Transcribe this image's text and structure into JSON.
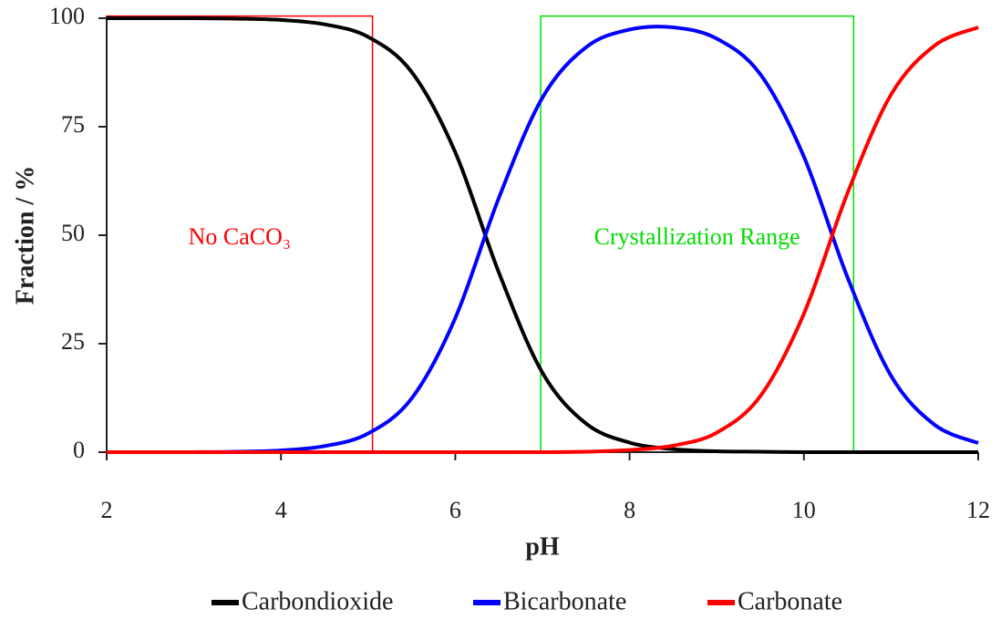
{
  "chart_data": {
    "type": "line",
    "x_label": "pH",
    "y_label": "Fraction / %",
    "x": [
      2,
      2.5,
      3,
      3.5,
      4,
      4.5,
      5,
      5.5,
      6,
      6.5,
      7,
      7.5,
      8,
      8.5,
      9,
      9.5,
      10,
      10.5,
      11,
      11.5,
      12
    ],
    "series": [
      {
        "name": "Carbondioxide",
        "color": "#000000",
        "values": [
          100,
          100,
          100,
          99.9,
          99.6,
          98.6,
          95.7,
          87.6,
          69.1,
          41.4,
          18.3,
          6.6,
          2.2,
          0.7,
          0.2,
          0.1,
          0,
          0,
          0,
          0,
          0
        ]
      },
      {
        "name": "Bicarbonate",
        "color": "#0000ff",
        "values": [
          null,
          null,
          0,
          0.1,
          0.4,
          1.4,
          4.3,
          12.4,
          30.9,
          58.6,
          81.7,
          93.3,
          97.4,
          97.9,
          95.3,
          87.1,
          68.1,
          40.3,
          17.6,
          6.3,
          2.1
        ]
      },
      {
        "name": "Carbonate",
        "color": "#ff0000",
        "values": [
          0,
          0,
          0,
          0,
          0,
          0,
          0,
          0,
          0,
          0,
          0,
          0.1,
          0.5,
          1.5,
          4.5,
          12.9,
          31.9,
          59.7,
          82.4,
          93.7,
          97.9
        ]
      }
    ],
    "regions": [
      {
        "x": [
          2,
          5.05
        ],
        "y": [
          0,
          100.5
        ],
        "color": "#ff0000",
        "label": "No CaCO₃"
      },
      {
        "x": [
          6.98,
          10.57
        ],
        "y": [
          0,
          100.5
        ],
        "color": "#00dd00",
        "label": "Crystallization Range"
      }
    ],
    "xlim": [
      2,
      12
    ],
    "ylim": [
      0,
      100
    ],
    "xticks": [
      2,
      4,
      6,
      8,
      10,
      12
    ],
    "yticks": [
      0,
      25,
      50,
      75,
      100
    ],
    "grid": false,
    "legend": "bottom"
  }
}
